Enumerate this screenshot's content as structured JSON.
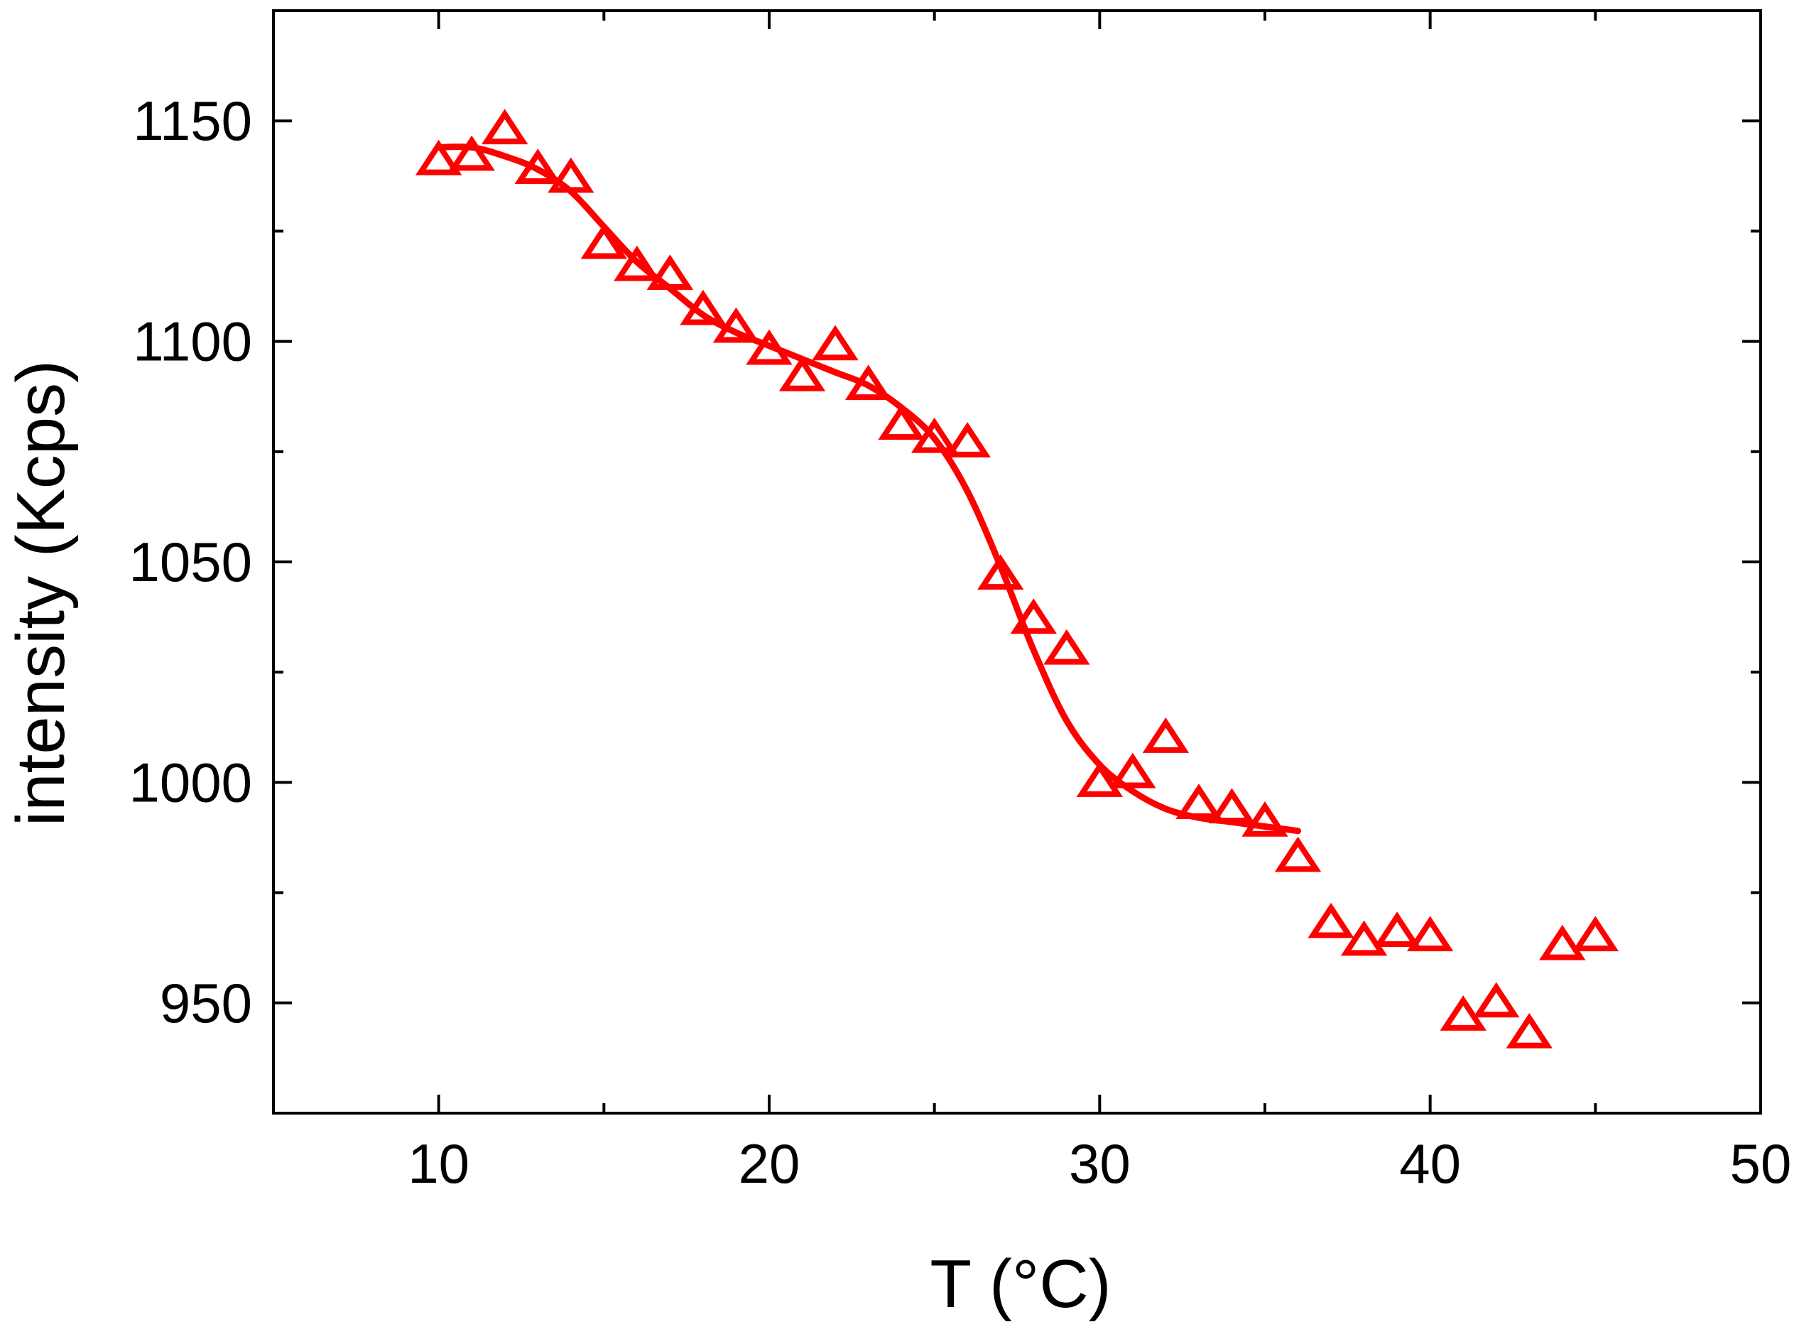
{
  "chart_data": {
    "type": "scatter",
    "title": "",
    "xlabel": "T (°C)",
    "ylabel": "intensity (Kcps)",
    "xlim": [
      5,
      50
    ],
    "ylim": [
      925,
      1175
    ],
    "x_ticks": [
      10,
      20,
      30,
      40,
      50
    ],
    "x_tick_labels": [
      "10",
      "20",
      "30",
      "40",
      "50"
    ],
    "x_minor_ticks": [
      15,
      25,
      35,
      45
    ],
    "y_ticks": [
      950,
      1000,
      1050,
      1100,
      1150
    ],
    "y_tick_labels": [
      "950",
      "1000",
      "1050",
      "1100",
      "1150"
    ],
    "y_minor_ticks": [
      975,
      1025,
      1075,
      1125
    ],
    "grid": false,
    "legend": "none",
    "colors": {
      "series": "#ff0000",
      "axis": "#000000",
      "background": "#ffffff"
    },
    "series": [
      {
        "marker": "open-triangle",
        "x": [
          10,
          11,
          12,
          13,
          14,
          15,
          16,
          17,
          18,
          19,
          20,
          21,
          22,
          23,
          24,
          25,
          26,
          27,
          28,
          29,
          30,
          31,
          32,
          33,
          34,
          35,
          36,
          37,
          38,
          39,
          40,
          41,
          42,
          43,
          44,
          45
        ],
        "y": [
          1141,
          1142,
          1148,
          1139,
          1137,
          1122,
          1117,
          1115,
          1107,
          1103,
          1098,
          1092,
          1099,
          1090,
          1081,
          1078,
          1077,
          1047,
          1037,
          1030,
          1000,
          1002,
          1010,
          995,
          994,
          991,
          983,
          968,
          964,
          966,
          965,
          947,
          950,
          943,
          963,
          965
        ]
      },
      {
        "marker": "none",
        "line": "solid",
        "x": [
          10,
          11,
          12,
          13,
          14,
          15,
          16,
          17,
          18,
          19,
          20,
          21,
          22,
          23,
          24,
          25,
          26,
          27,
          28,
          29,
          30,
          31,
          32,
          33,
          34,
          35,
          36
        ],
        "y": [
          1144,
          1144,
          1142,
          1139,
          1134,
          1126,
          1118,
          1112,
          1106,
          1102,
          1099,
          1096,
          1093,
          1090,
          1085,
          1078,
          1066,
          1049,
          1030,
          1014,
          1004,
          998,
          994,
          992,
          991,
          990,
          989
        ]
      }
    ]
  }
}
